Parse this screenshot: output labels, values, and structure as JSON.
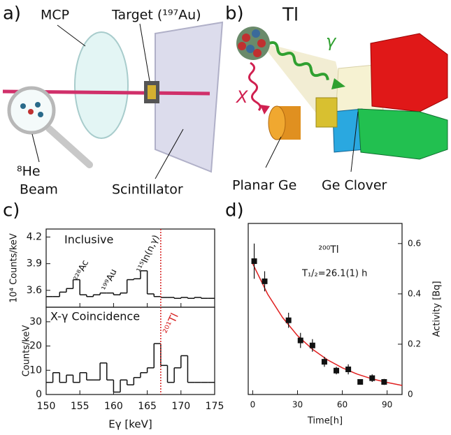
{
  "panel_labels": [
    "a)",
    "b)",
    "c)",
    "d)"
  ],
  "diagram_a": {
    "labels": {
      "mcp": "MCP",
      "target": "Target (¹⁹⁷Au)",
      "beam_isotope": "⁸He",
      "beam": "Beam",
      "scintillator": "Scintillator"
    }
  },
  "diagram_b": {
    "labels": {
      "nucleus": "Tl",
      "gamma": "γ",
      "xray": "X",
      "planar": "Planar Ge",
      "clover": "Ge Clover"
    }
  },
  "chart_data": [
    {
      "type": "histogram",
      "title": "Inclusive",
      "ylabel": "10⁴ Counts/keV",
      "bins": [
        150,
        151,
        152,
        153,
        154,
        155,
        156,
        157,
        158,
        159,
        160,
        161,
        162,
        163,
        164,
        165,
        166,
        167,
        168,
        169,
        170,
        171,
        172,
        173,
        174,
        175
      ],
      "values": [
        3.53,
        3.53,
        3.58,
        3.62,
        3.72,
        3.55,
        3.53,
        3.55,
        3.57,
        3.57,
        3.55,
        3.57,
        3.72,
        3.73,
        3.82,
        3.56,
        3.53,
        3.52,
        3.52,
        3.51,
        3.52,
        3.51,
        3.52,
        3.51,
        3.51
      ],
      "xlim": [
        150,
        175
      ],
      "ylim": [
        3.41,
        4.29
      ],
      "yticks": [
        3.6,
        3.9,
        4.2
      ],
      "annotations": [
        "²²⁸Ac",
        "¹⁹⁹Au",
        "¹¹⁵In(n,γ)"
      ],
      "marker_x": 167,
      "marker_color": "#d62020",
      "color": "#111111"
    },
    {
      "type": "histogram",
      "title": "X-γ Coincidence",
      "ylabel": "Counts/keV",
      "xlabel": "Eγ [keV]",
      "bins": [
        150,
        151,
        152,
        153,
        154,
        155,
        156,
        157,
        158,
        159,
        160,
        161,
        162,
        163,
        164,
        165,
        166,
        167,
        168,
        169,
        170,
        171,
        172,
        173,
        174,
        175
      ],
      "values": [
        5,
        9,
        5,
        8,
        5,
        9,
        6,
        6,
        13,
        6,
        1,
        6,
        4,
        7,
        9,
        11,
        21,
        12,
        5,
        11,
        16,
        5,
        5,
        5,
        5
      ],
      "xlim": [
        150,
        175
      ],
      "ylim": [
        0,
        36
      ],
      "xticks": [
        150,
        155,
        160,
        165,
        170,
        175
      ],
      "yticks": [
        0,
        10,
        20,
        30
      ],
      "marker": {
        "x": 167,
        "label": "²⁰¹Tl",
        "color": "#d62020"
      },
      "color": "#111111"
    },
    {
      "type": "scatter",
      "xlabel": "Time[h]",
      "ylabel": "Activity [Bq]",
      "annotations": [
        "²⁰⁰Tl",
        "T₁/₂=26.1(1) h"
      ],
      "x": [
        1,
        8,
        24,
        32,
        40,
        48,
        56,
        64,
        72,
        80,
        88
      ],
      "values": [
        0.53,
        0.45,
        0.295,
        0.215,
        0.195,
        0.13,
        0.095,
        0.1,
        0.05,
        0.065,
        0.05
      ],
      "errors": [
        0.07,
        0.04,
        0.03,
        0.03,
        0.025,
        0.02,
        0.015,
        0.02,
        0.01,
        0.015,
        0.012
      ],
      "color": "#111111",
      "fit": {
        "x": [
          0,
          10,
          20,
          30,
          40,
          50,
          60,
          70,
          80,
          90,
          100
        ],
        "values": [
          0.52,
          0.399,
          0.306,
          0.234,
          0.18,
          0.138,
          0.106,
          0.081,
          0.062,
          0.048,
          0.036
        ],
        "color": "#e02020"
      },
      "xlim": [
        -3,
        100
      ],
      "ylim": [
        0,
        0.68
      ],
      "xticks": [
        0,
        30,
        60,
        90
      ],
      "yticks": [
        0,
        0.2,
        0.4,
        0.6
      ]
    }
  ]
}
